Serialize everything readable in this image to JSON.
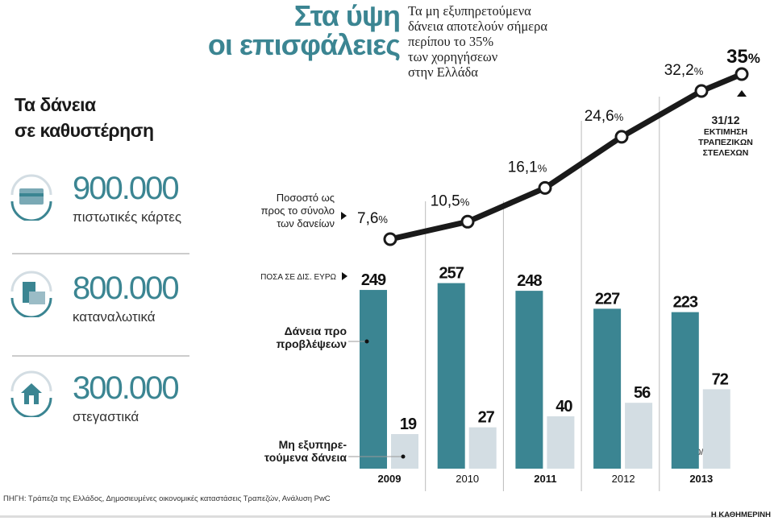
{
  "title": {
    "line1": "Στα ύψη",
    "line2": "οι επισφάλειες"
  },
  "subtitle": [
    "Τα μη εξυπηρετούμενα",
    "δάνεια αποτελούν σήμερα",
    "περίπου το 35%",
    "των χορηγήσεων",
    "στην Ελλάδα"
  ],
  "left_heading": {
    "line1": "Τα δάνεια",
    "line2": "σε καθυστέρηση"
  },
  "stats": [
    {
      "value": "900.000",
      "label": "πιστωτικές κάρτες",
      "icon": "credit-card-icon"
    },
    {
      "value": "800.000",
      "label": "καταναλωτικά",
      "icon": "shopping-bags-icon"
    },
    {
      "value": "300.000",
      "label": "στεγαστικά",
      "icon": "house-icon"
    }
  ],
  "line_note": [
    "Ποσοστό ως",
    "προς το σύνολο",
    "των δανείων"
  ],
  "bar_note": "ΠΟΣΑ ΣΕ ΔΙΣ. ΕΥΡΩ",
  "legend": {
    "teal": [
      "Δάνεια προ",
      "προβλέψεων"
    ],
    "light": [
      "Μη εξυπηρε-",
      "τούμενα δάνεια"
    ]
  },
  "estimate_note": {
    "date": "31/12",
    "lines": [
      "ΕΚΤΙΜΗΣΗ",
      "ΤΡΑΠΕΖΙΚΩΝ",
      "ΣΤΕΛΕΧΩΝ"
    ]
  },
  "bar_2013_note": "30/9",
  "source": "ΠΗΓΗ: Τράπεζα της Ελλάδος, Δημοσιευμένες οικονομικές καταστάσεις Τραπεζών, Ανάλυση PwC",
  "brand": "Η ΚΑΘΗΜΕΡΙΝΗ",
  "colors": {
    "teal": "#3b8592",
    "light": "#d3dde3",
    "line": "#1a1a1a"
  },
  "chart_data": [
    {
      "type": "bar",
      "title": "ΠΟΣΑ ΣΕ ΔΙΣ. ΕΥΡΩ",
      "categories": [
        "2009",
        "2010",
        "2011",
        "2012",
        "2013"
      ],
      "series": [
        {
          "name": "Δάνεια προ προβλέψεων",
          "values": [
            249,
            257,
            248,
            227,
            223
          ],
          "labels": [
            "249",
            "257",
            "248",
            "227",
            "223"
          ]
        },
        {
          "name": "Μη εξυπηρετούμενα δάνεια",
          "values": [
            19,
            27,
            40,
            56,
            72
          ],
          "labels": [
            "19",
            "27",
            "40",
            "56",
            "72"
          ]
        }
      ]
    },
    {
      "type": "line",
      "title": "Ποσοστό ως προς το σύνολο των δανείων",
      "x": [
        "2009",
        "2010",
        "2011",
        "2012",
        "2013",
        "31/12/2013 (εκτίμηση)"
      ],
      "values": [
        7.6,
        10.5,
        16.1,
        24.6,
        32.2,
        35
      ],
      "labels": [
        "7,6",
        "10,5",
        "16,1",
        "24,6",
        "32,2",
        "35"
      ],
      "unit": "%"
    }
  ]
}
